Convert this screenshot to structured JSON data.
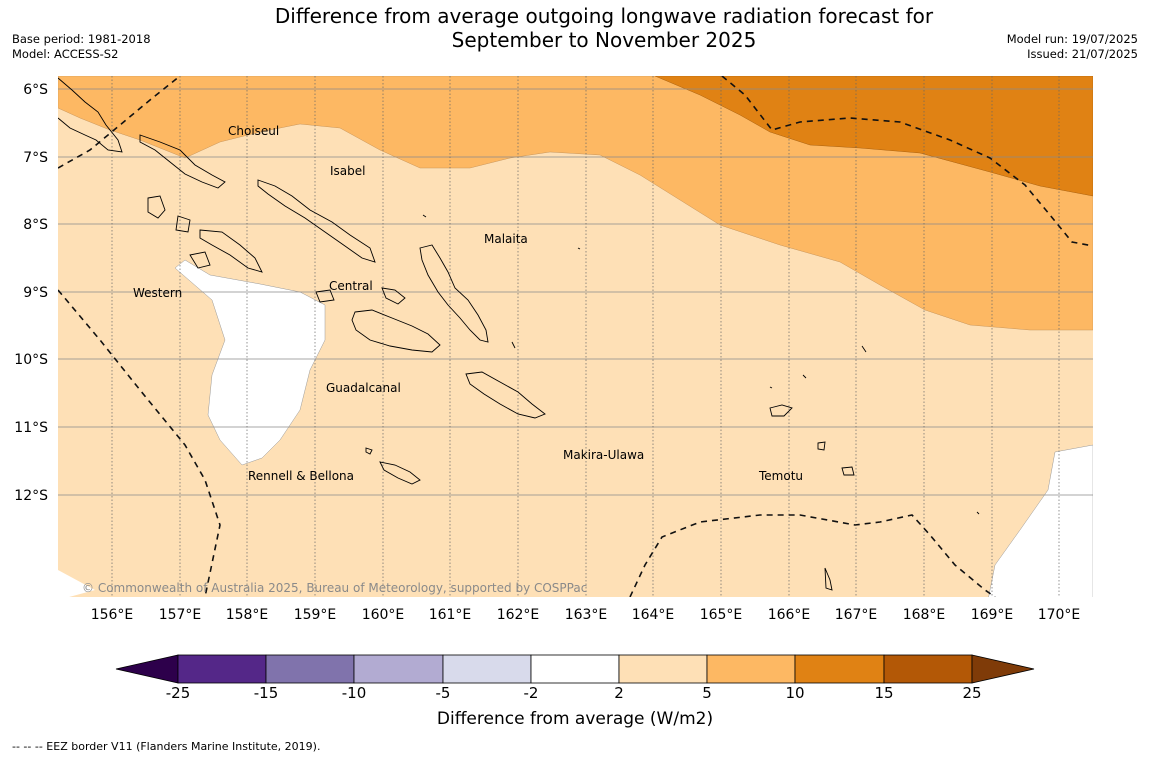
{
  "title_line1": "Difference from average outgoing longwave radiation forecast for",
  "title_line2": "September to November 2025",
  "meta_left": [
    "Base period: 1981-2018",
    "Model: ACCESS-S2"
  ],
  "meta_right": [
    "Model run: 19/07/2025",
    "Issued: 21/07/2025"
  ],
  "copyright": "© Commonwealth of Australia 2025, Bureau of Meteorology, supported by COSPPac",
  "lat_labels": [
    "6°S",
    "7°S",
    "8°S",
    "9°S",
    "10°S",
    "11°S",
    "12°S"
  ],
  "lon_labels": [
    "156°E",
    "157°E",
    "158°E",
    "159°E",
    "160°E",
    "161°E",
    "162°E",
    "163°E",
    "164°E",
    "165°E",
    "166°E",
    "167°E",
    "168°E",
    "169°E",
    "170°E"
  ],
  "regions": {
    "choiseul": "Choiseul",
    "isabel": "Isabel",
    "malaita": "Malaita",
    "western": "Western",
    "central": "Central",
    "guadalcanal": "Guadalcanal",
    "makira": "Makira-Ulawa",
    "temotu": "Temotu",
    "rennell": "Rennell & Bellona"
  },
  "colorbar": {
    "ticks": [
      "-25",
      "-15",
      "-10",
      "-5",
      "-2",
      "2",
      "5",
      "10",
      "15",
      "25"
    ],
    "label": "Difference from average (W/m2)",
    "colors": {
      "below_min": "#2d004b",
      "n25_n15": "#542788",
      "n15_n10": "#8073ac",
      "n10_n5": "#b2abd2",
      "n5_n2": "#d8daeb",
      "n2_p2": "#ffffff",
      "p2_p5": "#fee0b6",
      "p5_p10": "#fdb863",
      "p10_p15": "#e08214",
      "p15_p25": "#b35806",
      "above_max": "#7f3b08"
    }
  },
  "eez_note": "--  --  -- EEZ border V11 (Flanders Marine Institute, 2019)."
}
